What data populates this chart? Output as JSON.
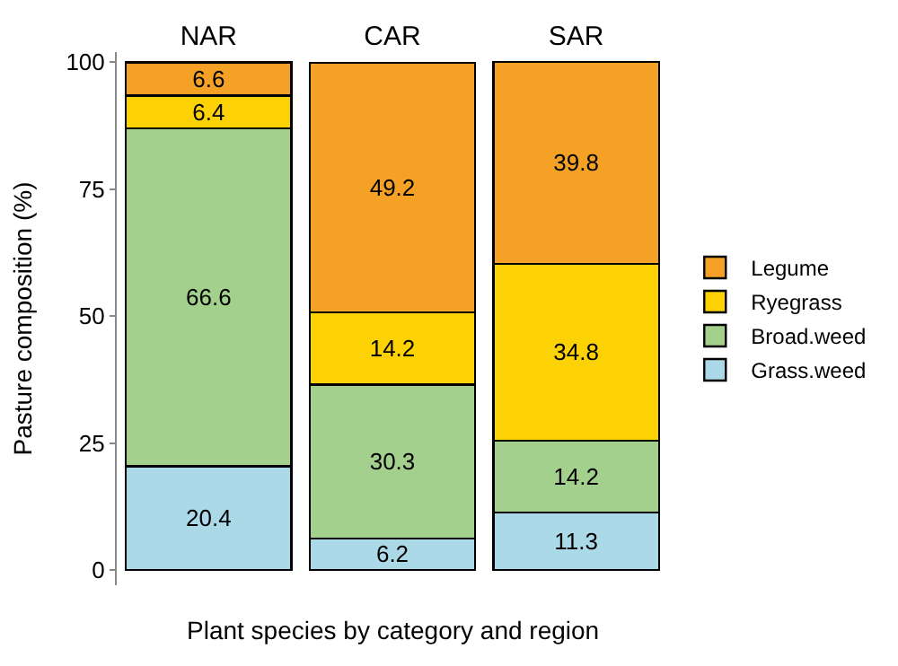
{
  "chart_data": {
    "type": "bar",
    "stacked": true,
    "xlabel": "Plant species by category and region",
    "ylabel": "Pasture composition (%)",
    "categories": [
      "NAR",
      "CAR",
      "SAR"
    ],
    "series": [
      {
        "name": "Grass.weed",
        "color": "#acd9e8",
        "values": [
          20.4,
          6.2,
          11.3
        ]
      },
      {
        "name": "Broad.weed",
        "color": "#a3d08c",
        "values": [
          66.6,
          30.3,
          14.2
        ]
      },
      {
        "name": "Ryegrass",
        "color": "#fdd205",
        "values": [
          6.4,
          14.2,
          34.8
        ]
      },
      {
        "name": "Legume",
        "color": "#f4a126",
        "values": [
          6.6,
          49.2,
          39.8
        ]
      }
    ],
    "ylim": [
      -3,
      102
    ],
    "yticks": [
      0,
      25,
      50,
      75,
      100
    ],
    "legend": "right",
    "data_labels": true
  }
}
